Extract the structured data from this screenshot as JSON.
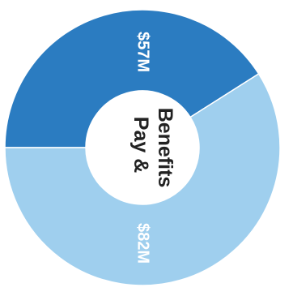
{
  "chart_data": {
    "type": "pie",
    "variant": "donut",
    "orientation": "rotated 90 degrees clockwise",
    "center_label": [
      "Pay &",
      "Benefits"
    ],
    "slices": [
      {
        "label": "$57M",
        "value": 57,
        "color": "#2b7cc1"
      },
      {
        "label": "$82M",
        "value": 82,
        "color": "#9fcfee"
      }
    ],
    "legend": "none"
  }
}
